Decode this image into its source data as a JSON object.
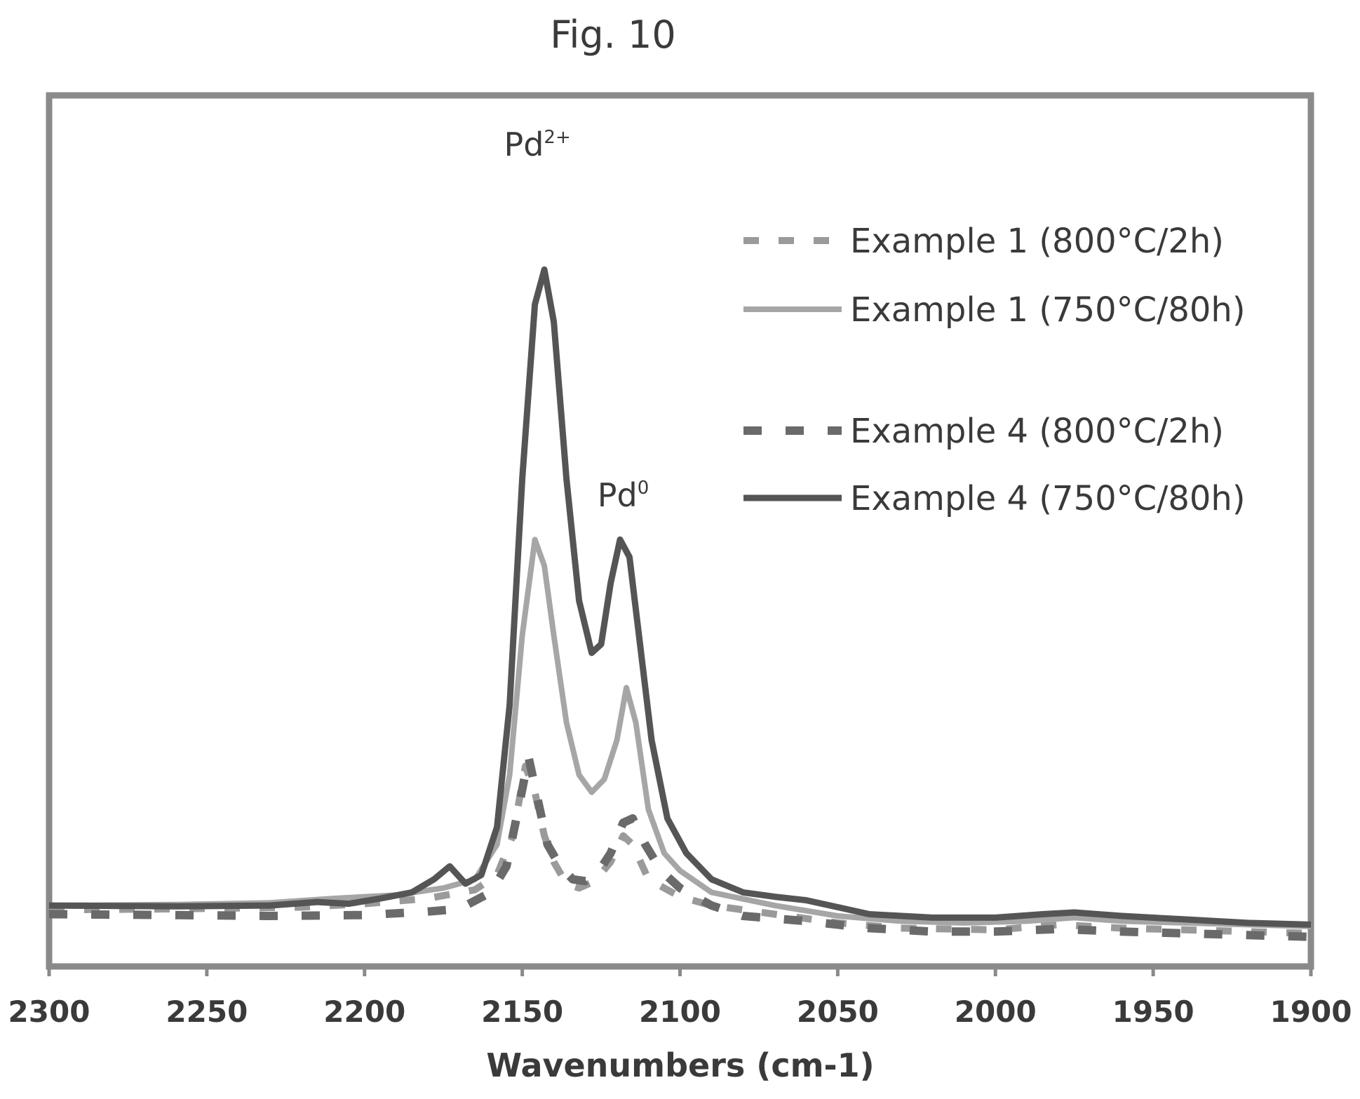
{
  "figure": {
    "title": "Fig. 10"
  },
  "chart_data": {
    "type": "line",
    "xlabel": "Wavenumbers (cm-1)",
    "ylabel": "",
    "xlim": [
      2300,
      1900
    ],
    "x_reversed": true,
    "xticks": [
      "2300",
      "2250",
      "2200",
      "2150",
      "2100",
      "2050",
      "2000",
      "1950",
      "1900"
    ],
    "yticks": [],
    "grid": false,
    "legend_position": "top-right",
    "annotations": [
      {
        "label": "Pd",
        "sup": "2+",
        "x": 2143
      },
      {
        "label": "Pd",
        "sup": "0",
        "x": 2118
      }
    ],
    "series": [
      {
        "name": "Example 1 (800°C/2h)",
        "style": "dashed-light",
        "color": "#9a9a9a",
        "points": [
          [
            2300,
            0.065
          ],
          [
            2260,
            0.066
          ],
          [
            2220,
            0.068
          ],
          [
            2200,
            0.072
          ],
          [
            2180,
            0.078
          ],
          [
            2165,
            0.088
          ],
          [
            2158,
            0.105
          ],
          [
            2153,
            0.15
          ],
          [
            2149,
            0.23
          ],
          [
            2146,
            0.2
          ],
          [
            2143,
            0.15
          ],
          [
            2140,
            0.12
          ],
          [
            2136,
            0.095
          ],
          [
            2132,
            0.09
          ],
          [
            2127,
            0.098
          ],
          [
            2122,
            0.12
          ],
          [
            2118,
            0.15
          ],
          [
            2115,
            0.14
          ],
          [
            2110,
            0.1
          ],
          [
            2100,
            0.08
          ],
          [
            2090,
            0.07
          ],
          [
            2070,
            0.06
          ],
          [
            2050,
            0.05
          ],
          [
            2030,
            0.044
          ],
          [
            2000,
            0.042
          ],
          [
            1980,
            0.048
          ],
          [
            1960,
            0.044
          ],
          [
            1940,
            0.042
          ],
          [
            1920,
            0.04
          ],
          [
            1900,
            0.038
          ]
        ]
      },
      {
        "name": "Example 1 (750°C/80h)",
        "style": "solid-light",
        "color": "#a6a6a6",
        "points": [
          [
            2300,
            0.07
          ],
          [
            2260,
            0.071
          ],
          [
            2230,
            0.073
          ],
          [
            2210,
            0.078
          ],
          [
            2190,
            0.082
          ],
          [
            2175,
            0.09
          ],
          [
            2165,
            0.1
          ],
          [
            2158,
            0.14
          ],
          [
            2154,
            0.22
          ],
          [
            2150,
            0.38
          ],
          [
            2146,
            0.49
          ],
          [
            2143,
            0.46
          ],
          [
            2140,
            0.38
          ],
          [
            2136,
            0.28
          ],
          [
            2132,
            0.22
          ],
          [
            2128,
            0.2
          ],
          [
            2124,
            0.215
          ],
          [
            2120,
            0.26
          ],
          [
            2117,
            0.32
          ],
          [
            2114,
            0.28
          ],
          [
            2110,
            0.18
          ],
          [
            2105,
            0.13
          ],
          [
            2100,
            0.11
          ],
          [
            2090,
            0.085
          ],
          [
            2070,
            0.07
          ],
          [
            2050,
            0.058
          ],
          [
            2030,
            0.052
          ],
          [
            2010,
            0.05
          ],
          [
            1990,
            0.052
          ],
          [
            1975,
            0.056
          ],
          [
            1960,
            0.052
          ],
          [
            1940,
            0.05
          ],
          [
            1920,
            0.048
          ],
          [
            1900,
            0.046
          ]
        ]
      },
      {
        "name": "Example 4 (800°C/2h)",
        "style": "dashed-dark",
        "color": "#6a6a6a",
        "points": [
          [
            2300,
            0.06
          ],
          [
            2260,
            0.059
          ],
          [
            2230,
            0.058
          ],
          [
            2200,
            0.059
          ],
          [
            2180,
            0.063
          ],
          [
            2170,
            0.066
          ],
          [
            2160,
            0.085
          ],
          [
            2155,
            0.115
          ],
          [
            2151,
            0.185
          ],
          [
            2148,
            0.24
          ],
          [
            2145,
            0.19
          ],
          [
            2142,
            0.14
          ],
          [
            2138,
            0.115
          ],
          [
            2134,
            0.1
          ],
          [
            2130,
            0.098
          ],
          [
            2126,
            0.108
          ],
          [
            2122,
            0.13
          ],
          [
            2118,
            0.165
          ],
          [
            2115,
            0.17
          ],
          [
            2111,
            0.14
          ],
          [
            2106,
            0.11
          ],
          [
            2100,
            0.09
          ],
          [
            2090,
            0.07
          ],
          [
            2080,
            0.058
          ],
          [
            2060,
            0.052
          ],
          [
            2040,
            0.044
          ],
          [
            2020,
            0.04
          ],
          [
            2000,
            0.04
          ],
          [
            1980,
            0.043
          ],
          [
            1960,
            0.04
          ],
          [
            1940,
            0.038
          ],
          [
            1920,
            0.036
          ],
          [
            1900,
            0.034
          ]
        ]
      },
      {
        "name": "Example 4 (750°C/80h)",
        "style": "solid-dark",
        "color": "#555555",
        "points": [
          [
            2300,
            0.07
          ],
          [
            2260,
            0.069
          ],
          [
            2230,
            0.07
          ],
          [
            2215,
            0.074
          ],
          [
            2205,
            0.072
          ],
          [
            2195,
            0.078
          ],
          [
            2185,
            0.085
          ],
          [
            2178,
            0.1
          ],
          [
            2173,
            0.115
          ],
          [
            2168,
            0.095
          ],
          [
            2163,
            0.105
          ],
          [
            2158,
            0.16
          ],
          [
            2154,
            0.3
          ],
          [
            2150,
            0.56
          ],
          [
            2146,
            0.76
          ],
          [
            2143,
            0.8
          ],
          [
            2140,
            0.74
          ],
          [
            2136,
            0.56
          ],
          [
            2132,
            0.42
          ],
          [
            2128,
            0.36
          ],
          [
            2125,
            0.37
          ],
          [
            2122,
            0.44
          ],
          [
            2119,
            0.49
          ],
          [
            2116,
            0.47
          ],
          [
            2113,
            0.38
          ],
          [
            2109,
            0.26
          ],
          [
            2104,
            0.17
          ],
          [
            2098,
            0.13
          ],
          [
            2090,
            0.1
          ],
          [
            2080,
            0.085
          ],
          [
            2070,
            0.08
          ],
          [
            2060,
            0.076
          ],
          [
            2050,
            0.068
          ],
          [
            2040,
            0.06
          ],
          [
            2020,
            0.056
          ],
          [
            2000,
            0.056
          ],
          [
            1985,
            0.06
          ],
          [
            1975,
            0.062
          ],
          [
            1960,
            0.058
          ],
          [
            1940,
            0.054
          ],
          [
            1920,
            0.05
          ],
          [
            1900,
            0.048
          ]
        ]
      }
    ]
  }
}
